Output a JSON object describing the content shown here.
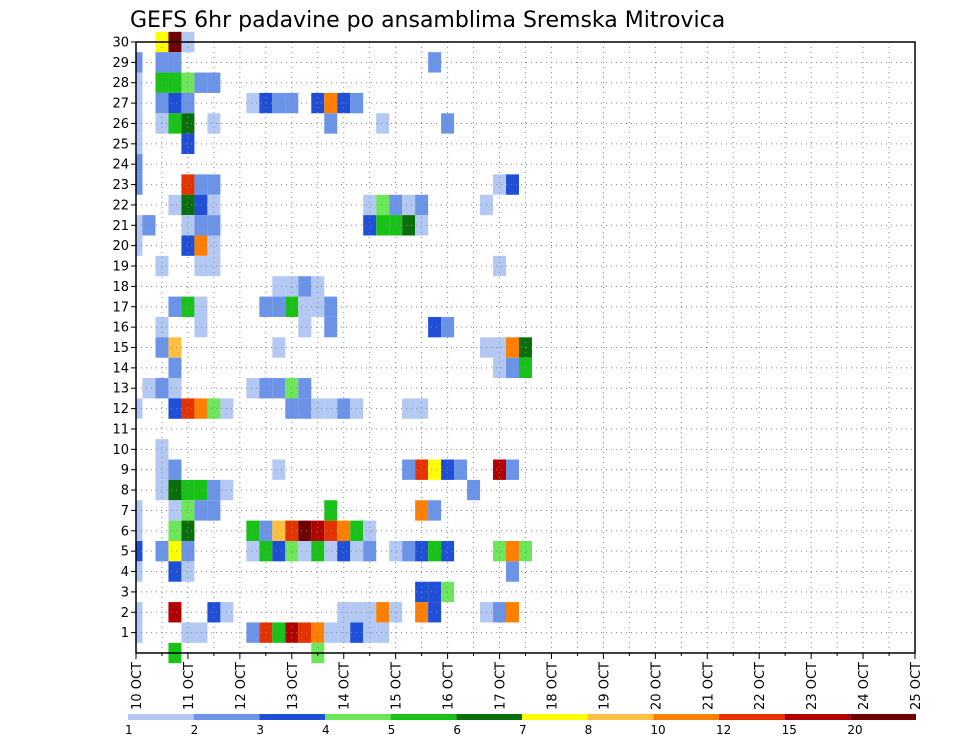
{
  "chart_data": {
    "type": "heatmap",
    "title": "GEFS 6hr padavine po ansamblima Sremska Mitrovica",
    "xlabel": "",
    "ylabel": "",
    "x_ticks": [
      "10 OCT",
      "11 OCT",
      "12 OCT",
      "13 OCT",
      "14 OCT",
      "15 OCT",
      "16 OCT",
      "17 OCT",
      "18 OCT",
      "19 OCT",
      "20 OCT",
      "21 OCT",
      "22 OCT",
      "23 OCT",
      "24 OCT",
      "25 OCT"
    ],
    "y_ticks": [
      "1",
      "2",
      "3",
      "4",
      "5",
      "6",
      "7",
      "8",
      "9",
      "10",
      "11",
      "12",
      "13",
      "14",
      "15",
      "16",
      "17",
      "18",
      "19",
      "20",
      "21",
      "22",
      "23",
      "24",
      "25",
      "26",
      "27",
      "28",
      "29",
      "30"
    ],
    "x_range_days": [
      0,
      15
    ],
    "y_range": [
      0,
      30
    ],
    "step_hours": 6,
    "grid": true,
    "colorbar": {
      "labels": [
        "1",
        "2",
        "3",
        "4",
        "5",
        "6",
        "7",
        "8",
        "10",
        "12",
        "15",
        "20"
      ],
      "colors": [
        "#b3c8f2",
        "#6b94e8",
        "#1e4fd6",
        "#6ee65a",
        "#19c219",
        "#0a6e0a",
        "#ffff00",
        "#ffbf40",
        "#ff8000",
        "#e63200",
        "#b00000",
        "#700000"
      ]
    },
    "cells": [
      [
        30,
        2,
        6
      ],
      [
        30,
        3,
        11
      ],
      [
        30,
        4,
        0
      ],
      [
        29,
        0,
        1
      ],
      [
        29,
        2,
        1
      ],
      [
        29,
        3,
        1
      ],
      [
        29,
        23,
        1
      ],
      [
        28,
        0,
        0
      ],
      [
        28,
        2,
        4
      ],
      [
        28,
        3,
        4
      ],
      [
        28,
        4,
        3
      ],
      [
        28,
        5,
        1
      ],
      [
        28,
        6,
        1
      ],
      [
        27,
        0,
        0
      ],
      [
        27,
        2,
        1
      ],
      [
        27,
        3,
        2
      ],
      [
        27,
        4,
        1
      ],
      [
        27,
        9,
        0
      ],
      [
        27,
        10,
        2
      ],
      [
        27,
        11,
        1
      ],
      [
        27,
        12,
        1
      ],
      [
        27,
        14,
        2
      ],
      [
        27,
        15,
        8
      ],
      [
        27,
        16,
        2
      ],
      [
        27,
        17,
        1
      ],
      [
        26,
        0,
        0
      ],
      [
        26,
        2,
        0
      ],
      [
        26,
        3,
        4
      ],
      [
        26,
        4,
        5
      ],
      [
        26,
        6,
        0
      ],
      [
        26,
        15,
        1
      ],
      [
        26,
        19,
        0
      ],
      [
        26,
        24,
        1
      ],
      [
        25,
        0,
        0
      ],
      [
        25,
        4,
        2
      ],
      [
        24,
        0,
        1
      ],
      [
        23,
        0,
        1
      ],
      [
        23,
        4,
        9
      ],
      [
        23,
        5,
        1
      ],
      [
        23,
        6,
        1
      ],
      [
        23,
        28,
        0
      ],
      [
        23,
        29,
        2
      ],
      [
        22,
        3,
        0
      ],
      [
        22,
        4,
        5
      ],
      [
        22,
        5,
        2
      ],
      [
        22,
        6,
        0
      ],
      [
        22,
        18,
        0
      ],
      [
        22,
        19,
        3
      ],
      [
        22,
        20,
        1
      ],
      [
        22,
        21,
        0
      ],
      [
        22,
        22,
        1
      ],
      [
        22,
        27,
        0
      ],
      [
        21,
        0,
        0
      ],
      [
        21,
        1,
        1
      ],
      [
        21,
        4,
        0
      ],
      [
        21,
        5,
        1
      ],
      [
        21,
        6,
        1
      ],
      [
        21,
        18,
        2
      ],
      [
        21,
        19,
        4
      ],
      [
        21,
        20,
        4
      ],
      [
        21,
        21,
        5
      ],
      [
        21,
        22,
        0
      ],
      [
        20,
        0,
        0
      ],
      [
        20,
        4,
        2
      ],
      [
        20,
        5,
        8
      ],
      [
        20,
        6,
        0
      ],
      [
        19,
        2,
        0
      ],
      [
        19,
        5,
        0
      ],
      [
        19,
        6,
        0
      ],
      [
        19,
        28,
        0
      ],
      [
        18,
        11,
        0
      ],
      [
        18,
        12,
        0
      ],
      [
        18,
        13,
        1
      ],
      [
        18,
        14,
        0
      ],
      [
        17,
        3,
        1
      ],
      [
        17,
        4,
        4
      ],
      [
        17,
        5,
        0
      ],
      [
        17,
        10,
        1
      ],
      [
        17,
        11,
        1
      ],
      [
        17,
        12,
        4
      ],
      [
        17,
        13,
        0
      ],
      [
        17,
        14,
        0
      ],
      [
        17,
        15,
        1
      ],
      [
        16,
        2,
        0
      ],
      [
        16,
        5,
        0
      ],
      [
        16,
        13,
        0
      ],
      [
        16,
        15,
        1
      ],
      [
        16,
        23,
        2
      ],
      [
        16,
        24,
        1
      ],
      [
        15,
        2,
        1
      ],
      [
        15,
        3,
        7
      ],
      [
        15,
        11,
        0
      ],
      [
        15,
        27,
        0
      ],
      [
        15,
        28,
        0
      ],
      [
        15,
        29,
        8
      ],
      [
        15,
        30,
        5
      ],
      [
        14,
        3,
        1
      ],
      [
        14,
        28,
        0
      ],
      [
        14,
        29,
        1
      ],
      [
        14,
        30,
        4
      ],
      [
        13,
        1,
        0
      ],
      [
        13,
        2,
        1
      ],
      [
        13,
        3,
        0
      ],
      [
        13,
        9,
        0
      ],
      [
        13,
        10,
        1
      ],
      [
        13,
        11,
        1
      ],
      [
        13,
        12,
        3
      ],
      [
        13,
        13,
        1
      ],
      [
        12,
        0,
        0
      ],
      [
        12,
        3,
        2
      ],
      [
        12,
        4,
        9
      ],
      [
        12,
        5,
        8
      ],
      [
        12,
        6,
        3
      ],
      [
        12,
        7,
        0
      ],
      [
        12,
        12,
        1
      ],
      [
        12,
        13,
        1
      ],
      [
        12,
        14,
        0
      ],
      [
        12,
        15,
        0
      ],
      [
        12,
        16,
        1
      ],
      [
        12,
        17,
        0
      ],
      [
        12,
        21,
        0
      ],
      [
        12,
        22,
        0
      ],
      [
        10,
        2,
        0
      ],
      [
        9,
        2,
        0
      ],
      [
        9,
        3,
        1
      ],
      [
        9,
        11,
        0
      ],
      [
        9,
        21,
        1
      ],
      [
        9,
        22,
        9
      ],
      [
        9,
        23,
        6
      ],
      [
        9,
        24,
        2
      ],
      [
        9,
        25,
        1
      ],
      [
        9,
        28,
        10
      ],
      [
        9,
        29,
        1
      ],
      [
        8,
        2,
        0
      ],
      [
        8,
        3,
        5
      ],
      [
        8,
        4,
        4
      ],
      [
        8,
        5,
        4
      ],
      [
        8,
        6,
        1
      ],
      [
        8,
        7,
        0
      ],
      [
        8,
        26,
        1
      ],
      [
        7,
        0,
        0
      ],
      [
        7,
        3,
        0
      ],
      [
        7,
        4,
        3
      ],
      [
        7,
        5,
        1
      ],
      [
        7,
        6,
        1
      ],
      [
        7,
        15,
        4
      ],
      [
        7,
        22,
        8
      ],
      [
        7,
        23,
        1
      ],
      [
        6,
        0,
        0
      ],
      [
        6,
        3,
        3
      ],
      [
        6,
        4,
        5
      ],
      [
        6,
        9,
        4
      ],
      [
        6,
        10,
        1
      ],
      [
        6,
        11,
        7
      ],
      [
        6,
        12,
        9
      ],
      [
        6,
        13,
        11
      ],
      [
        6,
        14,
        10
      ],
      [
        6,
        15,
        9
      ],
      [
        6,
        16,
        8
      ],
      [
        6,
        17,
        4
      ],
      [
        6,
        18,
        0
      ],
      [
        5,
        0,
        2
      ],
      [
        5,
        2,
        1
      ],
      [
        5,
        3,
        6
      ],
      [
        5,
        4,
        1
      ],
      [
        5,
        9,
        0
      ],
      [
        5,
        10,
        4
      ],
      [
        5,
        11,
        2
      ],
      [
        5,
        12,
        3
      ],
      [
        5,
        13,
        0
      ],
      [
        5,
        14,
        4
      ],
      [
        5,
        15,
        0
      ],
      [
        5,
        16,
        2
      ],
      [
        5,
        17,
        0
      ],
      [
        5,
        18,
        1
      ],
      [
        5,
        20,
        0
      ],
      [
        5,
        21,
        1
      ],
      [
        5,
        22,
        2
      ],
      [
        5,
        23,
        4
      ],
      [
        5,
        24,
        2
      ],
      [
        5,
        28,
        3
      ],
      [
        5,
        29,
        8
      ],
      [
        5,
        30,
        3
      ],
      [
        4,
        0,
        0
      ],
      [
        4,
        3,
        2
      ],
      [
        4,
        4,
        0
      ],
      [
        4,
        29,
        1
      ],
      [
        3,
        22,
        2
      ],
      [
        3,
        23,
        2
      ],
      [
        3,
        24,
        3
      ],
      [
        2,
        0,
        0
      ],
      [
        2,
        3,
        10
      ],
      [
        2,
        6,
        2
      ],
      [
        2,
        7,
        0
      ],
      [
        2,
        16,
        0
      ],
      [
        2,
        17,
        0
      ],
      [
        2,
        18,
        0
      ],
      [
        2,
        19,
        8
      ],
      [
        2,
        20,
        0
      ],
      [
        2,
        22,
        8
      ],
      [
        2,
        23,
        2
      ],
      [
        2,
        27,
        0
      ],
      [
        2,
        28,
        1
      ],
      [
        2,
        29,
        8
      ],
      [
        1,
        0,
        0
      ],
      [
        1,
        4,
        0
      ],
      [
        1,
        5,
        0
      ],
      [
        1,
        9,
        1
      ],
      [
        1,
        10,
        9
      ],
      [
        1,
        11,
        4
      ],
      [
        1,
        12,
        10
      ],
      [
        1,
        13,
        9
      ],
      [
        1,
        14,
        8
      ],
      [
        1,
        15,
        0
      ],
      [
        1,
        16,
        0
      ],
      [
        1,
        17,
        2
      ],
      [
        1,
        18,
        0
      ],
      [
        1,
        19,
        0
      ],
      [
        0,
        3,
        4
      ],
      [
        0,
        14,
        3
      ]
    ]
  }
}
